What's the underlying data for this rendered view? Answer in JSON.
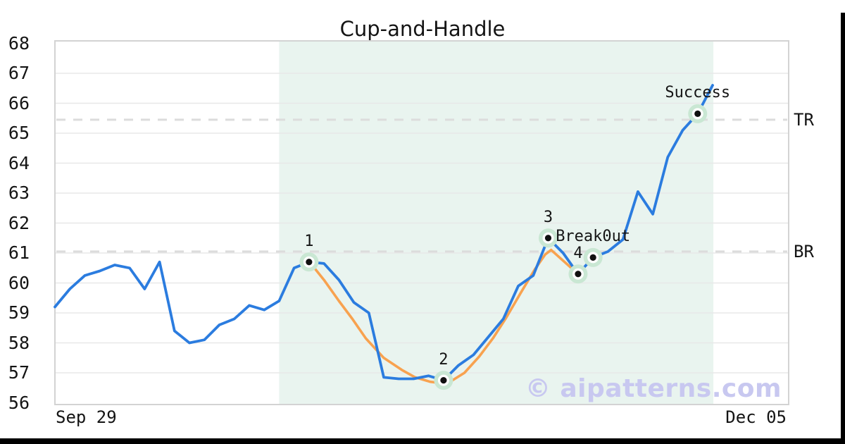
{
  "title": "Cup-and-Handle",
  "watermark": "© aipatterns.com",
  "axes": {
    "y_ticks": [
      68,
      67,
      66,
      65,
      64,
      63,
      62,
      61,
      60,
      59,
      58,
      57,
      56
    ],
    "x_tick_labels": [
      "Sep 29",
      "Dec 05"
    ]
  },
  "colors": {
    "price_line": "#2b7cdf",
    "pattern_outline": "#f8a24f",
    "pattern_region": "#e9f4ef",
    "marker_halo": "#c9e7d3",
    "marker_dot": "#111111",
    "grid": "#e8e8e8",
    "spine": "#d3d3d3",
    "dashed_level": "#dcdcdc",
    "text": "#141414",
    "watermark": "#c8c8f0"
  },
  "chart_data": {
    "type": "line",
    "title": "Cup-and-Handle",
    "xlabel": "",
    "ylabel": "",
    "ylim": [
      55.9,
      68.05
    ],
    "grid": "horizontal",
    "legend": "none",
    "x_tick_labels": [
      "Sep 29",
      "Dec 05"
    ],
    "series": [
      {
        "name": "price",
        "values": [
          59.2,
          59.8,
          60.25,
          60.4,
          60.6,
          60.5,
          59.8,
          60.7,
          58.4,
          58.0,
          58.1,
          58.6,
          58.8,
          59.25,
          59.1,
          59.4,
          60.5,
          60.7,
          60.65,
          60.1,
          59.35,
          59.0,
          56.85,
          56.8,
          56.8,
          56.9,
          56.75,
          57.25,
          57.6,
          58.2,
          58.8,
          59.9,
          60.25,
          61.5,
          61.0,
          60.3,
          60.85,
          61.05,
          61.45,
          63.05,
          62.3,
          64.2,
          65.1,
          65.65,
          66.6
        ]
      }
    ],
    "overlays": [
      {
        "name": "cup-outline",
        "points": [
          [
            17.1,
            60.66
          ],
          [
            18,
            60.1
          ],
          [
            19,
            59.4
          ],
          [
            19.9,
            58.8
          ],
          [
            20.8,
            58.15
          ],
          [
            22,
            57.5
          ],
          [
            23.2,
            57.1
          ],
          [
            24.1,
            56.85
          ],
          [
            25.1,
            56.7
          ],
          [
            26,
            56.65
          ],
          [
            26.5,
            56.72
          ],
          [
            27.4,
            57.0
          ],
          [
            28.4,
            57.55
          ],
          [
            29.3,
            58.15
          ],
          [
            30.2,
            58.85
          ],
          [
            31.2,
            59.7
          ],
          [
            32.1,
            60.45
          ],
          [
            32.8,
            60.95
          ],
          [
            33.2,
            61.1
          ]
        ]
      },
      {
        "name": "handle-outline",
        "points": [
          [
            33.2,
            61.1
          ],
          [
            35,
            60.3
          ]
        ]
      }
    ],
    "pattern_region": {
      "start_index": 15.0,
      "end_index": 44.05
    },
    "horizontal_lines": [
      {
        "label": "TR",
        "value": 65.45
      },
      {
        "label": "BR",
        "value": 61.05
      }
    ],
    "key_points": [
      {
        "label": "1",
        "index": 17,
        "value": 60.7
      },
      {
        "label": "2",
        "index": 26,
        "value": 56.75
      },
      {
        "label": "3",
        "index": 33,
        "value": 61.5
      },
      {
        "label": "4",
        "index": 35,
        "value": 60.3
      },
      {
        "label": "Break0ut",
        "index": 36,
        "value": 60.85
      },
      {
        "label": "Success",
        "index": 43,
        "value": 65.65
      }
    ]
  }
}
